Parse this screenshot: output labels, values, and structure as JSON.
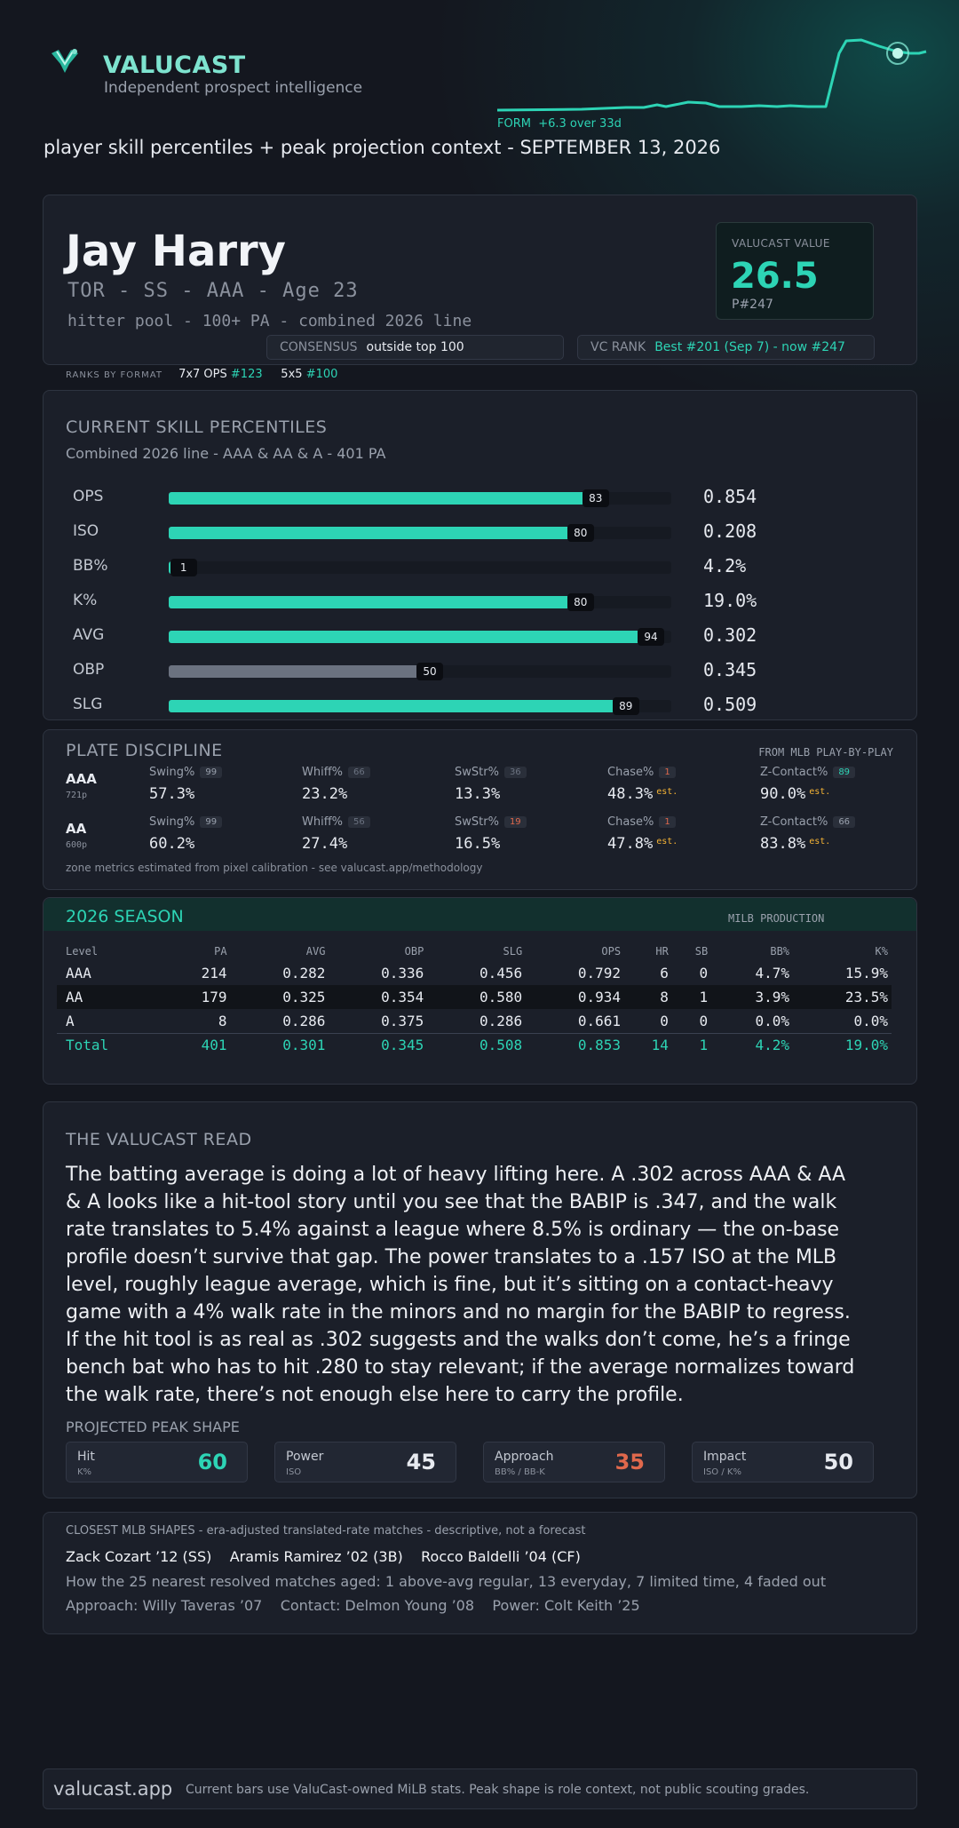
{
  "header": {
    "brand": "VALUCAST",
    "tagline": "Independent prospect intelligence",
    "form_label": "FORM",
    "form_change": "+6.3 over 33d",
    "subtitle": "player skill percentiles + peak projection context - SEPTEMBER 13, 2026"
  },
  "player": {
    "name": "Jay Harry",
    "meta": "TOR - SS - AAA - Age 23",
    "pool": "hitter pool - 100+ PA - combined 2026 line",
    "value_label": "VALUCAST VALUE",
    "value": "26.5",
    "value_rank": "P#247",
    "consensus_label": "CONSENSUS",
    "consensus_value": "outside top 100",
    "vc_rank_label": "VC RANK",
    "vc_rank_value": "Best #201 (Sep 7) - now #247",
    "ranks_by_format_label": "RANKS BY FORMAT",
    "format_1_name": "7x7 OPS",
    "format_1_rank": "#123",
    "format_2_name": "5x5",
    "format_2_rank": "#100"
  },
  "percentiles": {
    "title": "CURRENT SKILL PERCENTILES",
    "subtitle": "Combined 2026 line - AAA & AA & A - 401 PA",
    "rows": [
      {
        "label": "OPS",
        "pct": 83,
        "value": "0.854",
        "color": "#2dd4b5"
      },
      {
        "label": "ISO",
        "pct": 80,
        "value": "0.208",
        "color": "#2dd4b5"
      },
      {
        "label": "BB%",
        "pct": 1,
        "value": "4.2%",
        "color": "#2dd4b5"
      },
      {
        "label": "K%",
        "pct": 80,
        "value": "19.0%",
        "color": "#2dd4b5"
      },
      {
        "label": "AVG",
        "pct": 94,
        "value": "0.302",
        "color": "#2dd4b5"
      },
      {
        "label": "OBP",
        "pct": 50,
        "value": "0.345",
        "color": "#6b7280"
      },
      {
        "label": "SLG",
        "pct": 89,
        "value": "0.509",
        "color": "#2dd4b5"
      }
    ]
  },
  "plate_discipline": {
    "title": "PLATE DISCIPLINE",
    "source": "FROM MLB PLAY-BY-PLAY",
    "note": "zone metrics estimated from pixel calibration - see valucast.app/methodology",
    "est_label": "est.",
    "levels": [
      {
        "level": "AAA",
        "pa": "721p",
        "metrics": [
          {
            "name": "Swing%",
            "pct": "99",
            "value": "57.3%",
            "badge_color": "#9aa1ad",
            "est": false
          },
          {
            "name": "Whiff%",
            "pct": "66",
            "value": "23.2%",
            "badge_color": "#6b7280",
            "est": false
          },
          {
            "name": "SwStr%",
            "pct": "36",
            "value": "13.3%",
            "badge_color": "#6b7280",
            "est": false
          },
          {
            "name": "Chase%",
            "pct": "1",
            "value": "48.3%",
            "badge_color": "#e0684c",
            "est": true
          },
          {
            "name": "Z-Contact%",
            "pct": "89",
            "value": "90.0%",
            "badge_color": "#2dd4b5",
            "est": true
          }
        ]
      },
      {
        "level": "AA",
        "pa": "600p",
        "metrics": [
          {
            "name": "Swing%",
            "pct": "99",
            "value": "60.2%",
            "badge_color": "#9aa1ad",
            "est": false
          },
          {
            "name": "Whiff%",
            "pct": "56",
            "value": "27.4%",
            "badge_color": "#6b7280",
            "est": false
          },
          {
            "name": "SwStr%",
            "pct": "19",
            "value": "16.5%",
            "badge_color": "#e0684c",
            "est": false
          },
          {
            "name": "Chase%",
            "pct": "1",
            "value": "47.8%",
            "badge_color": "#e0684c",
            "est": true
          },
          {
            "name": "Z-Contact%",
            "pct": "66",
            "value": "83.8%",
            "badge_color": "#9aa1ad",
            "est": true
          }
        ]
      }
    ]
  },
  "season": {
    "title": "2026 SEASON",
    "tag": "MILB PRODUCTION",
    "columns": [
      "Level",
      "PA",
      "AVG",
      "OBP",
      "SLG",
      "OPS",
      "HR",
      "SB",
      "BB%",
      "K%"
    ],
    "rows": [
      [
        "AAA",
        "214",
        "0.282",
        "0.336",
        "0.456",
        "0.792",
        "6",
        "0",
        "4.7%",
        "15.9%"
      ],
      [
        "AA",
        "179",
        "0.325",
        "0.354",
        "0.580",
        "0.934",
        "8",
        "1",
        "3.9%",
        "23.5%"
      ],
      [
        "A",
        "8",
        "0.286",
        "0.375",
        "0.286",
        "0.661",
        "0",
        "0",
        "0.0%",
        "0.0%"
      ]
    ],
    "total": [
      "Total",
      "401",
      "0.301",
      "0.345",
      "0.508",
      "0.853",
      "14",
      "1",
      "4.2%",
      "19.0%"
    ]
  },
  "read": {
    "title": "THE VALUCAST READ",
    "body": "The batting average is doing a lot of heavy lifting here. A .302 across AAA & AA & A looks like a hit-tool story until you see that the BABIP is .347, and the walk rate translates to 5.4% against a league where 8.5% is ordinary — the on-base profile doesn’t survive that gap. The power translates to a .157 ISO at the MLB level, roughly league average, which is fine, but it’s sitting on a contact-heavy game with a 4% walk rate in the minors and no margin for the BABIP to regress. If the hit tool is as real as .302 suggests and the walks don’t come, he’s a fringe bench bat who has to hit .280 to stay relevant; if the average normalizes toward the walk rate, there’s not enough else here to carry the profile.",
    "peak_title": "PROJECTED PEAK SHAPE",
    "peak": [
      {
        "name": "Hit",
        "sub": "K%",
        "value": "60",
        "color": "#2dd4b5"
      },
      {
        "name": "Power",
        "sub": "ISO",
        "value": "45",
        "color": "#e7eaf0"
      },
      {
        "name": "Approach",
        "sub": "BB% / BB-K",
        "value": "35",
        "color": "#e0684c"
      },
      {
        "name": "Impact",
        "sub": "ISO / K%",
        "value": "50",
        "color": "#e7eaf0"
      }
    ]
  },
  "comps": {
    "title": "CLOSEST MLB SHAPES - era-adjusted translated-rate matches - descriptive, not a forecast",
    "names": [
      "Zack Cozart ’12 (SS)",
      "Aramis Ramirez ’02 (3B)",
      "Rocco Baldelli ’04 (CF)"
    ],
    "aging": "How the 25 nearest resolved matches aged: 1 above-avg regular, 13 everyday, 7 limited time, 4 faded out",
    "approach": "Approach: Willy Taveras ’07",
    "contact": "Contact: Delmon Young ’08",
    "power": "Power: Colt Keith ’25"
  },
  "footer": {
    "site": "valucast.app",
    "note": "Current bars use ValuCast-owned MiLB stats. Peak shape is role context, not public scouting grades."
  }
}
